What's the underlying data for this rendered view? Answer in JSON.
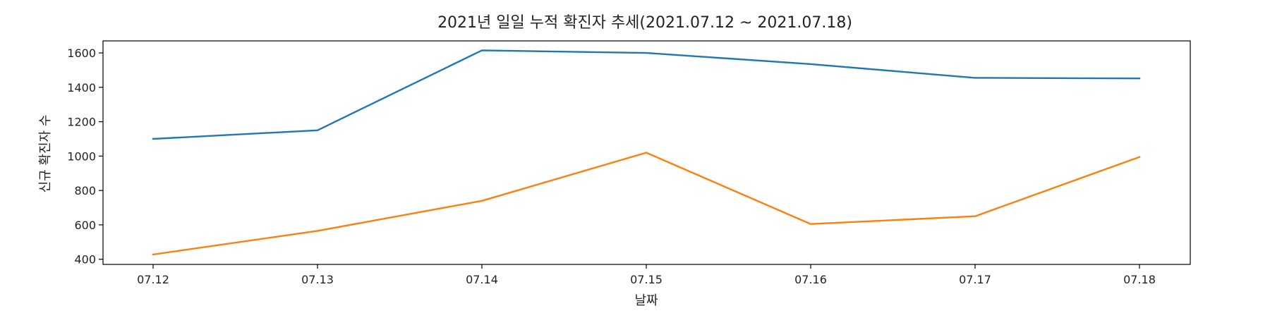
{
  "chart_data": {
    "type": "line",
    "title": "2021년 일일 누적 확진자 추세(2021.07.12 ~ 2021.07.18)",
    "xlabel": "날짜",
    "ylabel": "신규 확진자 수",
    "categories": [
      "07.12",
      "07.13",
      "07.14",
      "07.15",
      "07.16",
      "07.17",
      "07.18"
    ],
    "ylim": [
      370,
      1670
    ],
    "yticks": [
      400,
      600,
      800,
      1000,
      1200,
      1400,
      1600
    ],
    "grid": false,
    "legend": "none",
    "series": [
      {
        "color": "#1f77b4",
        "values": [
          1100,
          1150,
          1615,
          1600,
          1535,
          1455,
          1452
        ]
      },
      {
        "color": "#ff7f0e",
        "values": [
          428,
          565,
          740,
          1020,
          605,
          650,
          995
        ]
      }
    ]
  }
}
